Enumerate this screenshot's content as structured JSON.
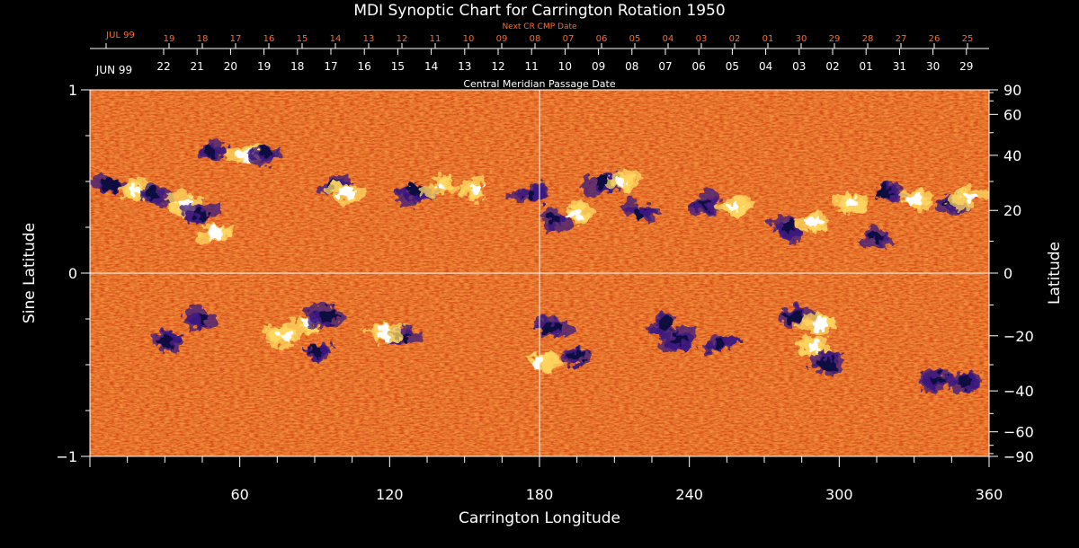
{
  "chart_data": {
    "type": "heatmap",
    "title": "MDI Synoptic Chart for Carrington Rotation 1950",
    "xlabel": "Carrington Longitude",
    "ylabel_left": "Sine Latitude",
    "ylabel_right": "Latitude",
    "xlim": [
      0,
      360
    ],
    "ylim": [
      -1,
      1
    ],
    "x_ticks": [
      60,
      120,
      180,
      240,
      300,
      360
    ],
    "y_ticks_left": [
      {
        "value": -1,
        "label": "−1"
      },
      {
        "value": 0,
        "label": "0"
      },
      {
        "value": 1,
        "label": "1"
      }
    ],
    "y_ticks_right_deg": [
      90,
      60,
      40,
      20,
      0,
      -20,
      -40,
      -60,
      -90
    ],
    "y_ticks_right_labels": [
      "90",
      "60",
      "40",
      "20",
      "0",
      "−20",
      "−40",
      "−60",
      "−90"
    ],
    "top_axis_label": "Central Meridian Passage Date",
    "top_axis_month_label": "JUN 99",
    "top_axis_dates": [
      "22",
      "21",
      "20",
      "19",
      "18",
      "17",
      "16",
      "15",
      "14",
      "13",
      "12",
      "11",
      "10",
      "09",
      "08",
      "07",
      "06",
      "05",
      "04",
      "03",
      "02",
      "01",
      "31",
      "30",
      "29"
    ],
    "next_cr_label": "Next CR CMP Date",
    "next_cr_month_label": "JUL 99",
    "next_cr_dates": [
      "19",
      "18",
      "17",
      "16",
      "15",
      "14",
      "13",
      "12",
      "11",
      "10",
      "09",
      "08",
      "07",
      "06",
      "05",
      "04",
      "03",
      "02",
      "01",
      "30",
      "29",
      "28",
      "27",
      "26",
      "25"
    ],
    "background_colors": [
      "#c43a0e",
      "#e85a17",
      "#f07a22",
      "#b02a08"
    ],
    "positive_color": "#ffffff",
    "positive_mid_color": "#ffd860",
    "negative_color": "#0a0a40",
    "negative_mid_color": "#3a1a80",
    "regions": [
      {
        "lon": 48,
        "sinlat": 0.67,
        "pol": -1
      },
      {
        "lon": 62,
        "sinlat": 0.64,
        "pol": 1
      },
      {
        "lon": 70,
        "sinlat": 0.66,
        "pol": -1
      },
      {
        "lon": 8,
        "sinlat": 0.48,
        "pol": -1
      },
      {
        "lon": 18,
        "sinlat": 0.45,
        "pol": 1
      },
      {
        "lon": 25,
        "sinlat": 0.44,
        "pol": -1
      },
      {
        "lon": 38,
        "sinlat": 0.38,
        "pol": 1
      },
      {
        "lon": 44,
        "sinlat": 0.32,
        "pol": -1
      },
      {
        "lon": 50,
        "sinlat": 0.22,
        "pol": 1
      },
      {
        "lon": 98,
        "sinlat": 0.47,
        "pol": -1
      },
      {
        "lon": 103,
        "sinlat": 0.44,
        "pol": 1
      },
      {
        "lon": 130,
        "sinlat": 0.45,
        "pol": -1
      },
      {
        "lon": 140,
        "sinlat": 0.47,
        "pol": 1
      },
      {
        "lon": 155,
        "sinlat": 0.46,
        "pol": 1
      },
      {
        "lon": 176,
        "sinlat": 0.43,
        "pol": -1
      },
      {
        "lon": 185,
        "sinlat": 0.3,
        "pol": -1
      },
      {
        "lon": 194,
        "sinlat": 0.32,
        "pol": 1
      },
      {
        "lon": 205,
        "sinlat": 0.5,
        "pol": -1
      },
      {
        "lon": 213,
        "sinlat": 0.5,
        "pol": 1
      },
      {
        "lon": 220,
        "sinlat": 0.33,
        "pol": -1
      },
      {
        "lon": 246,
        "sinlat": 0.38,
        "pol": -1
      },
      {
        "lon": 258,
        "sinlat": 0.36,
        "pol": 1
      },
      {
        "lon": 280,
        "sinlat": 0.25,
        "pol": -1
      },
      {
        "lon": 290,
        "sinlat": 0.28,
        "pol": 1
      },
      {
        "lon": 305,
        "sinlat": 0.38,
        "pol": 1
      },
      {
        "lon": 318,
        "sinlat": 0.44,
        "pol": -1
      },
      {
        "lon": 330,
        "sinlat": 0.4,
        "pol": 1
      },
      {
        "lon": 345,
        "sinlat": 0.38,
        "pol": -1
      },
      {
        "lon": 352,
        "sinlat": 0.42,
        "pol": 1
      },
      {
        "lon": 315,
        "sinlat": 0.2,
        "pol": -1
      },
      {
        "lon": 45,
        "sinlat": -0.25,
        "pol": -1
      },
      {
        "lon": 30,
        "sinlat": -0.37,
        "pol": -1
      },
      {
        "lon": 88,
        "sinlat": -0.27,
        "pol": 1
      },
      {
        "lon": 95,
        "sinlat": -0.23,
        "pol": -1
      },
      {
        "lon": 78,
        "sinlat": -0.35,
        "pol": 1
      },
      {
        "lon": 90,
        "sinlat": -0.42,
        "pol": -1
      },
      {
        "lon": 125,
        "sinlat": -0.35,
        "pol": -1
      },
      {
        "lon": 118,
        "sinlat": -0.33,
        "pol": 1
      },
      {
        "lon": 180,
        "sinlat": -0.48,
        "pol": 1
      },
      {
        "lon": 185,
        "sinlat": -0.3,
        "pol": -1
      },
      {
        "lon": 195,
        "sinlat": -0.45,
        "pol": -1
      },
      {
        "lon": 230,
        "sinlat": -0.28,
        "pol": -1
      },
      {
        "lon": 236,
        "sinlat": -0.36,
        "pol": -1
      },
      {
        "lon": 252,
        "sinlat": -0.39,
        "pol": -1
      },
      {
        "lon": 282,
        "sinlat": -0.24,
        "pol": -1
      },
      {
        "lon": 292,
        "sinlat": -0.28,
        "pol": 1
      },
      {
        "lon": 290,
        "sinlat": -0.4,
        "pol": 1
      },
      {
        "lon": 295,
        "sinlat": -0.5,
        "pol": -1
      },
      {
        "lon": 340,
        "sinlat": -0.58,
        "pol": -1
      },
      {
        "lon": 350,
        "sinlat": -0.6,
        "pol": -1
      }
    ]
  }
}
